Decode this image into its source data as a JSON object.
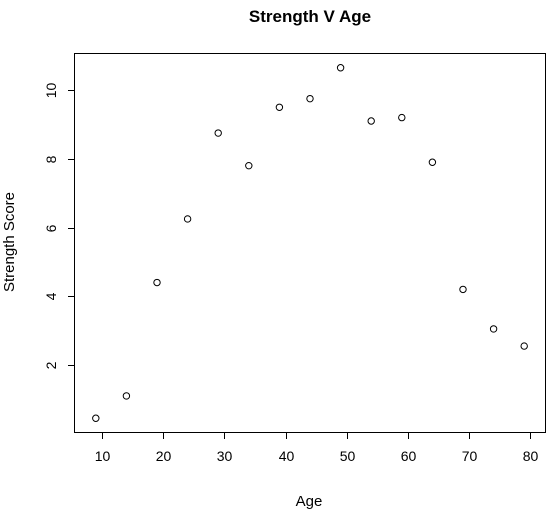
{
  "chart_data": {
    "type": "scatter",
    "title": "Strength V Age",
    "xlabel": "Age",
    "ylabel": "Strength Score",
    "xlim": [
      5.6,
      82.4
    ],
    "ylim": [
      0.05,
      11.05
    ],
    "xticks": [
      10,
      20,
      30,
      40,
      50,
      60,
      70,
      80
    ],
    "yticks": [
      2,
      4,
      6,
      8,
      10
    ],
    "grid": false,
    "legend": "none",
    "points": [
      {
        "x": 9,
        "y": 0.45
      },
      {
        "x": 14,
        "y": 1.1
      },
      {
        "x": 19,
        "y": 4.4
      },
      {
        "x": 24,
        "y": 6.25
      },
      {
        "x": 29,
        "y": 8.75
      },
      {
        "x": 34,
        "y": 7.8
      },
      {
        "x": 39,
        "y": 9.5
      },
      {
        "x": 44,
        "y": 9.75
      },
      {
        "x": 49,
        "y": 10.65
      },
      {
        "x": 54,
        "y": 9.1
      },
      {
        "x": 59,
        "y": 9.2
      },
      {
        "x": 64,
        "y": 7.9
      },
      {
        "x": 69,
        "y": 4.2
      },
      {
        "x": 74,
        "y": 3.05
      },
      {
        "x": 79,
        "y": 2.55
      }
    ]
  }
}
